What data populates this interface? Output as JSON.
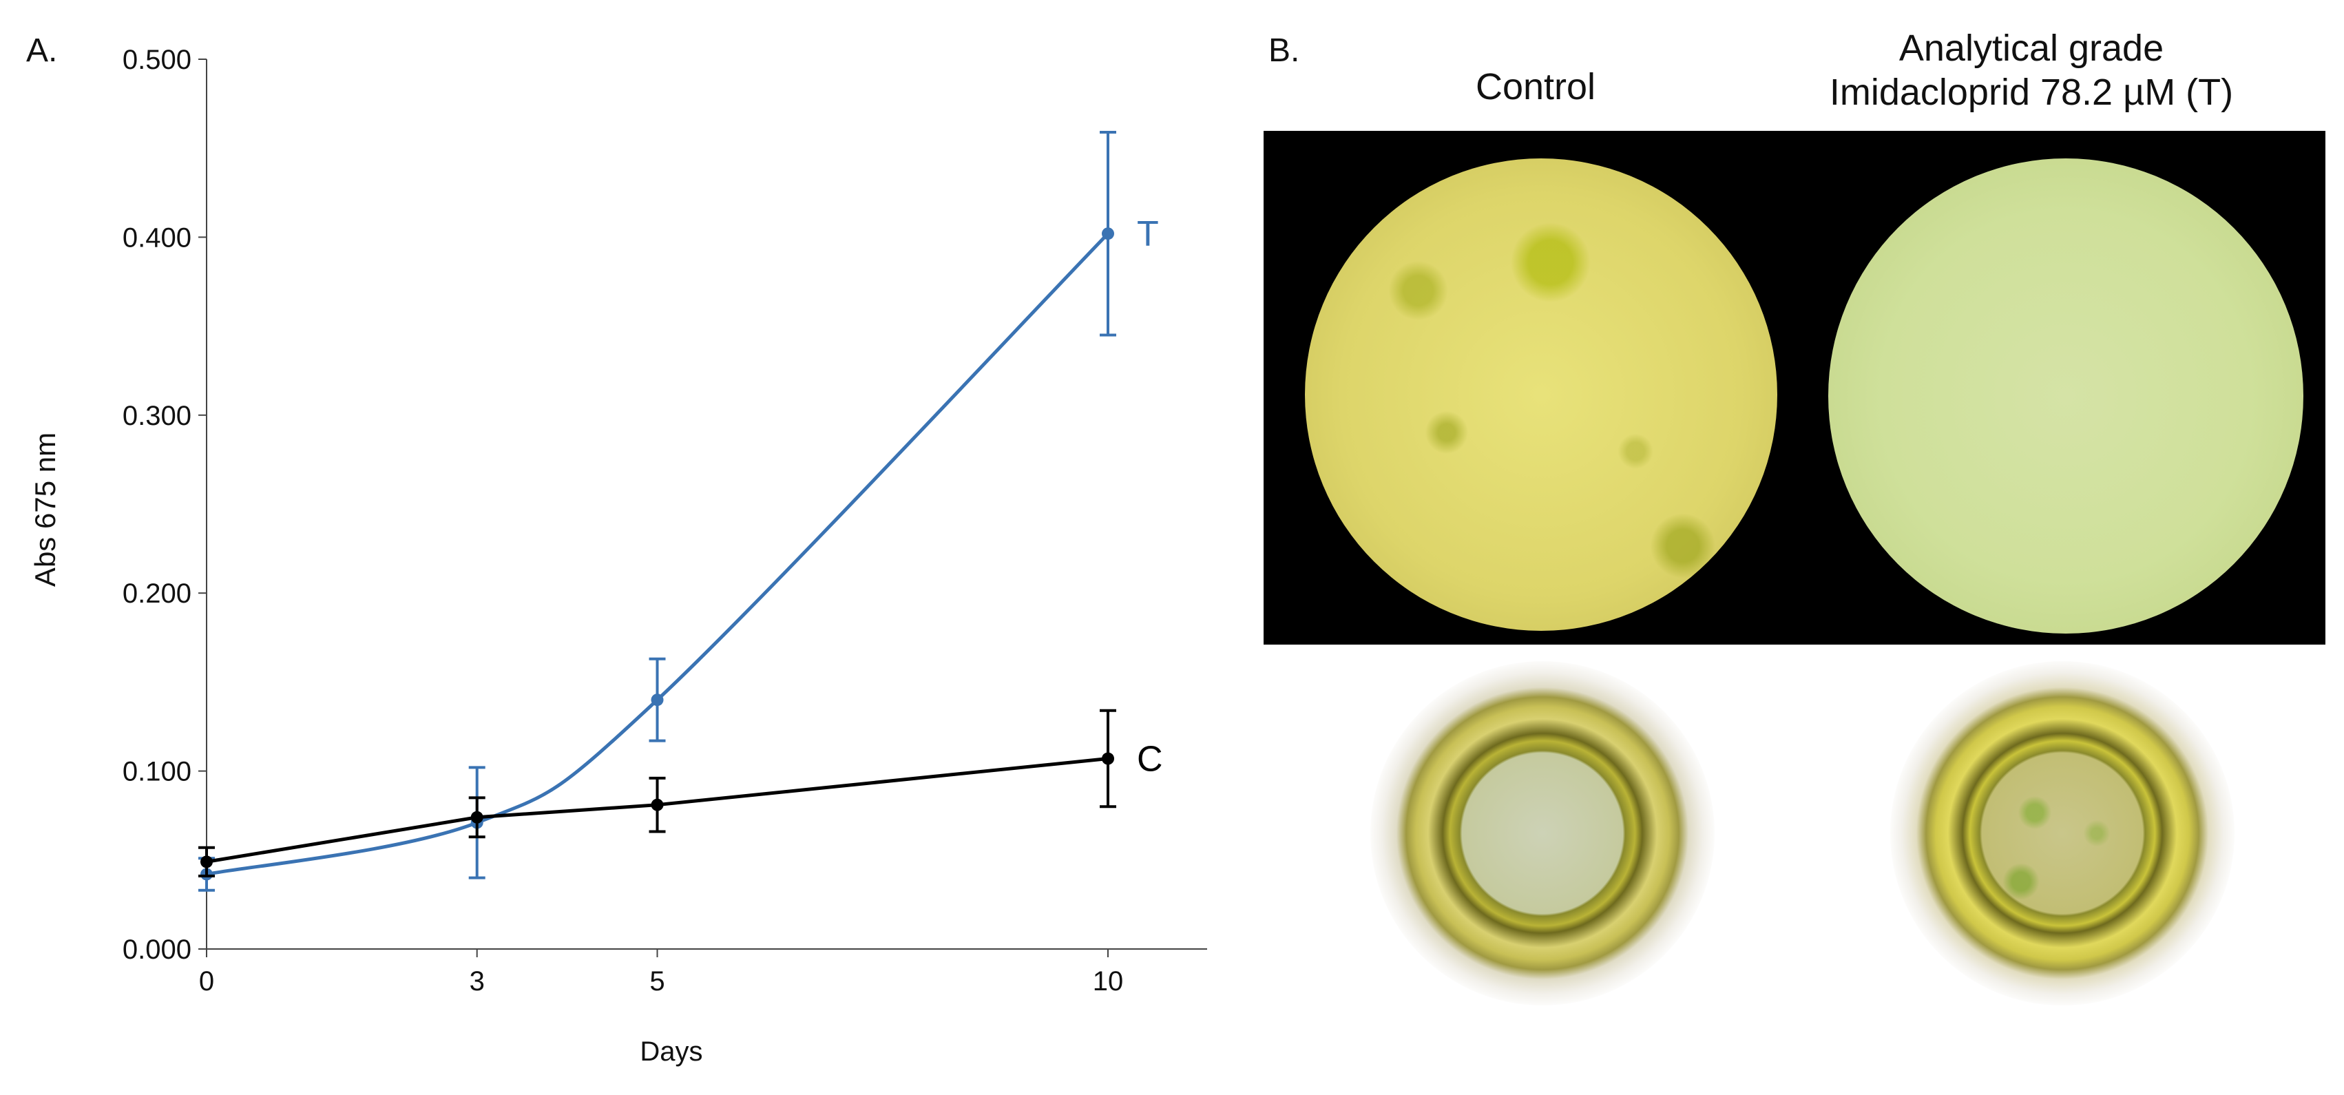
{
  "panels": {
    "a_label": "A.",
    "b_label": "B."
  },
  "chart_data": {
    "type": "line",
    "title": "",
    "xlabel": "Days",
    "ylabel": "Abs 675 nm",
    "x_ticks": [
      0,
      3,
      5,
      10
    ],
    "x_tick_labels": [
      "0",
      "3",
      "5",
      "10"
    ],
    "xlim": [
      0,
      11.1
    ],
    "ylim": [
      0,
      0.5
    ],
    "y_ticks": [
      0,
      0.1,
      0.2,
      0.3,
      0.4,
      0.5
    ],
    "y_tick_labels": [
      "0.000",
      "0.100",
      "0.200",
      "0.300",
      "0.400",
      "0.500"
    ],
    "grid": false,
    "legend": "inline end labels",
    "series": [
      {
        "name": "T",
        "color": "#3a73b3",
        "smooth": true,
        "x": [
          0,
          3,
          5,
          10
        ],
        "y": [
          0.042,
          0.071,
          0.14,
          0.402
        ],
        "error": [
          0.009,
          0.031,
          0.023,
          0.057
        ]
      },
      {
        "name": "C",
        "color": "#000000",
        "smooth": false,
        "x": [
          0,
          3,
          5,
          10
        ],
        "y": [
          0.049,
          0.074,
          0.081,
          0.107
        ],
        "error": [
          0.008,
          0.011,
          0.015,
          0.027
        ]
      }
    ]
  },
  "photos": {
    "control_caption": "Control",
    "treated_caption_line1": "Analytical grade",
    "treated_caption_line2": "Imidacloprid 78.2 µM (T)"
  }
}
